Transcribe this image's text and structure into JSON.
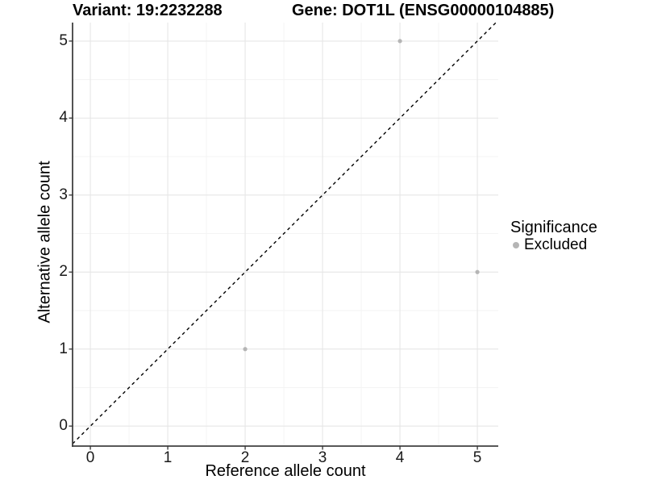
{
  "header": {
    "variant_title": "Variant: 19:2232288",
    "gene_title": "Gene: DOT1L (ENSG00000104885)"
  },
  "chart_data": {
    "type": "scatter",
    "xlabel": "Reference allele count",
    "ylabel": "Alternative allele count",
    "x_ticks": [
      0,
      1,
      2,
      3,
      4,
      5
    ],
    "y_ticks": [
      0,
      1,
      2,
      3,
      4,
      5
    ],
    "xlim": [
      -0.23,
      5.27
    ],
    "ylim": [
      -0.26,
      5.24
    ],
    "grid": {
      "major": [
        0,
        1,
        2,
        3,
        4,
        5
      ],
      "minor": [
        0.5,
        1.5,
        2.5,
        3.5,
        4.5
      ]
    },
    "points": [
      {
        "x": 4,
        "y": 5,
        "significance": "Excluded"
      },
      {
        "x": 5,
        "y": 2,
        "significance": "Excluded"
      },
      {
        "x": 2,
        "y": 1,
        "significance": "Excluded"
      }
    ],
    "identity_line": {
      "slope": 1,
      "intercept": 0,
      "style": "dashed"
    },
    "legend": {
      "title": "Significance",
      "position": "right",
      "items": [
        {
          "label": "Excluded",
          "color": "#b5b5b5"
        }
      ]
    },
    "colors": {
      "point": "#b5b5b5",
      "identity_line": "#000000",
      "grid_major": "#e6e6e6",
      "grid_minor": "#f3f3f3",
      "axis_line": "#404040",
      "tick_mark": "#333333",
      "tick_text": "#1a1a1a",
      "title_text": "#000000",
      "background": "#ffffff"
    }
  }
}
